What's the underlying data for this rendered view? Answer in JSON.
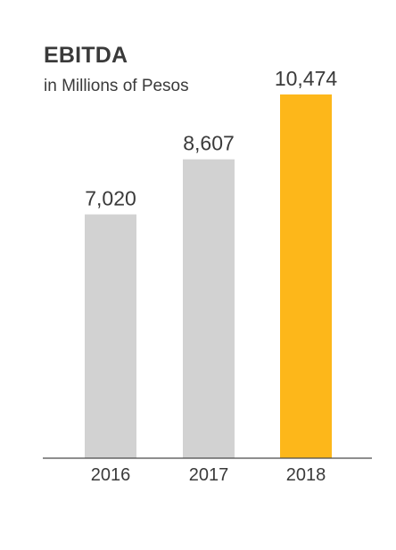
{
  "colors": {
    "bar_default": "#d2d2d2",
    "bar_highlight": "#fdb71a",
    "text": "#3a3a3a",
    "axis": "#4a4a4a"
  },
  "chart_data": {
    "type": "bar",
    "title": "EBITDA",
    "subtitle": "in Millions of Pesos",
    "categories": [
      "2016",
      "2017",
      "2018"
    ],
    "values": [
      7020,
      8607,
      10474
    ],
    "value_labels": [
      "7,020",
      "8,607",
      "10,474"
    ],
    "highlight_index": 2,
    "ylim": [
      0,
      11500
    ],
    "grid": false,
    "legend": "none"
  }
}
